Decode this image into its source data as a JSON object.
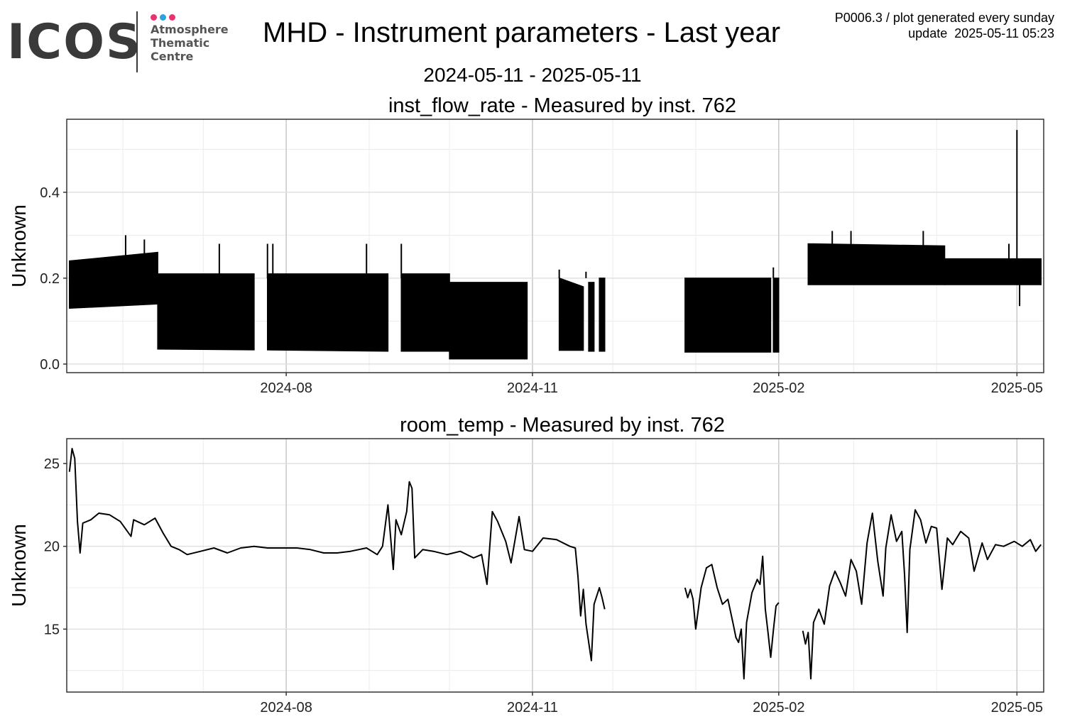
{
  "header": {
    "logo": {
      "word": "ICOS",
      "lines": [
        "Atmosphere",
        "Thematic",
        "Centre"
      ],
      "dot_colors": [
        "#e8336d",
        "#2ba3e0",
        "#e8336d"
      ]
    },
    "title": "MHD - Instrument parameters - Last year",
    "date_range": "2024-05-11 - 2025-05-11",
    "meta_line1": "P0006.3 / plot generated every sunday",
    "meta_line2": "update  2025-05-11 05:23"
  },
  "chart_data": [
    {
      "type": "line",
      "title": "inst_flow_rate - Measured by inst. 762",
      "ylabel": "Unknown",
      "xlim": [
        "2024-05-11",
        "2025-05-11"
      ],
      "ylim": [
        -0.02,
        0.57
      ],
      "yticks": [
        0.0,
        0.2,
        0.4
      ],
      "ytick_labels": [
        "0.0",
        "0.2",
        "0.4"
      ],
      "xticks": [
        "2024-08-01",
        "2024-11-01",
        "2025-02-01",
        "2025-05-01"
      ],
      "xtick_labels": [
        "2024-08",
        "2024-11",
        "2025-02",
        "2025-05"
      ],
      "grid": true,
      "series_color": "#000000",
      "envelope_segments": [
        {
          "start": "2024-05-12",
          "end": "2024-06-14",
          "low_start": 0.13,
          "low_end": 0.14,
          "high_start": 0.24,
          "high_end": 0.26
        },
        {
          "start": "2024-06-14",
          "end": "2024-07-20",
          "low_start": 0.035,
          "low_end": 0.033,
          "high_start": 0.21,
          "high_end": 0.21
        },
        {
          "start": "2024-07-25",
          "end": "2024-09-08",
          "low_start": 0.033,
          "low_end": 0.03,
          "high_start": 0.21,
          "high_end": 0.21
        },
        {
          "start": "2024-09-13",
          "end": "2024-10-01",
          "low_start": 0.03,
          "low_end": 0.03,
          "high_start": 0.21,
          "high_end": 0.21
        },
        {
          "start": "2024-10-01",
          "end": "2024-10-30",
          "low_start": 0.012,
          "low_end": 0.012,
          "high_start": 0.19,
          "high_end": 0.19
        },
        {
          "start": "2024-11-11",
          "end": "2024-11-20",
          "low_start": 0.032,
          "low_end": 0.032,
          "high_start": 0.2,
          "high_end": 0.18
        },
        {
          "start": "2024-11-22",
          "end": "2024-11-24",
          "low_start": 0.03,
          "low_end": 0.03,
          "high_start": 0.19,
          "high_end": 0.19
        },
        {
          "start": "2024-11-26",
          "end": "2024-11-28",
          "low_start": 0.03,
          "low_end": 0.03,
          "high_start": 0.2,
          "high_end": 0.2
        },
        {
          "start": "2024-12-28",
          "end": "2025-01-29",
          "low_start": 0.028,
          "low_end": 0.028,
          "high_start": 0.2,
          "high_end": 0.2
        },
        {
          "start": "2025-01-30",
          "end": "2025-02-01",
          "low_start": 0.028,
          "low_end": 0.028,
          "high_start": 0.2,
          "high_end": 0.2
        },
        {
          "start": "2025-02-12",
          "end": "2025-04-04",
          "low_start": 0.185,
          "low_end": 0.185,
          "high_start": 0.28,
          "high_end": 0.275
        },
        {
          "start": "2025-04-04",
          "end": "2025-05-10",
          "low_start": 0.185,
          "low_end": 0.185,
          "high_start": 0.245,
          "high_end": 0.245
        }
      ],
      "spikes": [
        {
          "x": "2024-06-02",
          "y": 0.3
        },
        {
          "x": "2024-06-09",
          "y": 0.29
        },
        {
          "x": "2024-07-07",
          "y": 0.28
        },
        {
          "x": "2024-07-25",
          "y": 0.28
        },
        {
          "x": "2024-07-27",
          "y": 0.28
        },
        {
          "x": "2024-08-31",
          "y": 0.28
        },
        {
          "x": "2024-09-13",
          "y": 0.28
        },
        {
          "x": "2024-11-11",
          "y": 0.22
        },
        {
          "x": "2024-11-21",
          "y": 0.215
        },
        {
          "x": "2025-01-30",
          "y": 0.225
        },
        {
          "x": "2025-02-21",
          "y": 0.31
        },
        {
          "x": "2025-02-28",
          "y": 0.31
        },
        {
          "x": "2025-03-27",
          "y": 0.31
        },
        {
          "x": "2025-04-28",
          "y": 0.28
        },
        {
          "x": "2025-05-01",
          "y": 0.545
        },
        {
          "x": "2025-05-02",
          "y": 0.135
        }
      ]
    },
    {
      "type": "line",
      "title": "room_temp - Measured by inst. 762",
      "ylabel": "Unknown",
      "xlim": [
        "2024-05-11",
        "2025-05-11"
      ],
      "ylim": [
        11.2,
        26.5
      ],
      "yticks": [
        15,
        20,
        25
      ],
      "ytick_labels": [
        "15",
        "20",
        "25"
      ],
      "xticks": [
        "2024-08-01",
        "2024-11-01",
        "2025-02-01",
        "2025-05-01"
      ],
      "xtick_labels": [
        "2024-08",
        "2024-11",
        "2025-02",
        "2025-05"
      ],
      "grid": true,
      "series_color": "#000000",
      "segments": [
        [
          [
            "2024-05-12",
            24.5
          ],
          [
            "2024-05-13",
            25.9
          ],
          [
            "2024-05-14",
            25.3
          ],
          [
            "2024-05-15",
            21.5
          ],
          [
            "2024-05-16",
            19.6
          ],
          [
            "2024-05-17",
            21.4
          ],
          [
            "2024-05-20",
            21.6
          ],
          [
            "2024-05-23",
            22.0
          ],
          [
            "2024-05-27",
            21.9
          ],
          [
            "2024-05-31",
            21.5
          ],
          [
            "2024-06-04",
            20.6
          ],
          [
            "2024-06-05",
            21.6
          ],
          [
            "2024-06-09",
            21.3
          ],
          [
            "2024-06-13",
            21.7
          ],
          [
            "2024-06-16",
            20.8
          ],
          [
            "2024-06-19",
            20.0
          ],
          [
            "2024-06-22",
            19.8
          ],
          [
            "2024-06-25",
            19.5
          ],
          [
            "2024-06-30",
            19.7
          ],
          [
            "2024-07-05",
            19.9
          ],
          [
            "2024-07-10",
            19.6
          ],
          [
            "2024-07-15",
            19.9
          ],
          [
            "2024-07-20",
            20.0
          ],
          [
            "2024-07-25",
            19.9
          ],
          [
            "2024-07-30",
            19.9
          ],
          [
            "2024-08-05",
            19.9
          ],
          [
            "2024-08-10",
            19.8
          ],
          [
            "2024-08-15",
            19.6
          ],
          [
            "2024-08-20",
            19.6
          ],
          [
            "2024-08-25",
            19.7
          ],
          [
            "2024-08-31",
            19.9
          ],
          [
            "2024-09-04",
            19.5
          ],
          [
            "2024-09-06",
            20.0
          ],
          [
            "2024-09-08",
            22.5
          ],
          [
            "2024-09-10",
            18.6
          ],
          [
            "2024-09-11",
            21.6
          ],
          [
            "2024-09-13",
            20.7
          ],
          [
            "2024-09-15",
            22.1
          ],
          [
            "2024-09-16",
            23.9
          ],
          [
            "2024-09-17",
            23.5
          ],
          [
            "2024-09-18",
            19.3
          ],
          [
            "2024-09-21",
            19.8
          ],
          [
            "2024-09-25",
            19.7
          ],
          [
            "2024-09-30",
            19.5
          ],
          [
            "2024-10-05",
            19.7
          ],
          [
            "2024-10-10",
            19.3
          ],
          [
            "2024-10-13",
            19.5
          ],
          [
            "2024-10-15",
            17.7
          ],
          [
            "2024-10-17",
            22.1
          ],
          [
            "2024-10-19",
            21.5
          ],
          [
            "2024-10-22",
            20.3
          ],
          [
            "2024-10-24",
            19.0
          ],
          [
            "2024-10-27",
            21.8
          ],
          [
            "2024-10-29",
            19.8
          ],
          [
            "2024-11-01",
            19.7
          ],
          [
            "2024-11-05",
            20.5
          ],
          [
            "2024-11-10",
            20.4
          ],
          [
            "2024-11-15",
            20.0
          ],
          [
            "2024-11-17",
            19.9
          ],
          [
            "2024-11-18",
            18.2
          ],
          [
            "2024-11-19",
            15.8
          ],
          [
            "2024-11-20",
            17.4
          ],
          [
            "2024-11-21",
            15.3
          ],
          [
            "2024-11-23",
            13.1
          ],
          [
            "2024-11-24",
            16.5
          ],
          [
            "2024-11-26",
            17.5
          ],
          [
            "2024-11-27",
            16.9
          ],
          [
            "2024-11-28",
            16.2
          ]
        ],
        [
          [
            "2024-12-28",
            17.5
          ],
          [
            "2024-12-29",
            16.9
          ],
          [
            "2024-12-30",
            17.4
          ],
          [
            "2024-12-31",
            16.8
          ],
          [
            "2025-01-01",
            15.0
          ],
          [
            "2025-01-03",
            17.5
          ],
          [
            "2025-01-05",
            18.7
          ],
          [
            "2025-01-07",
            18.9
          ],
          [
            "2025-01-09",
            17.5
          ],
          [
            "2025-01-11",
            16.5
          ],
          [
            "2025-01-13",
            16.8
          ],
          [
            "2025-01-15",
            15.3
          ],
          [
            "2025-01-16",
            14.5
          ],
          [
            "2025-01-17",
            14.2
          ],
          [
            "2025-01-18",
            15.0
          ],
          [
            "2025-01-19",
            12.0
          ],
          [
            "2025-01-20",
            15.4
          ],
          [
            "2025-01-22",
            17.2
          ],
          [
            "2025-01-24",
            18.0
          ],
          [
            "2025-01-25",
            17.7
          ],
          [
            "2025-01-26",
            19.4
          ],
          [
            "2025-01-27",
            16.2
          ],
          [
            "2025-01-28",
            14.8
          ],
          [
            "2025-01-29",
            13.3
          ],
          [
            "2025-01-30",
            14.9
          ],
          [
            "2025-01-31",
            16.4
          ],
          [
            "2025-02-01",
            16.6
          ]
        ],
        [
          [
            "2025-02-10",
            14.9
          ],
          [
            "2025-02-11",
            14.1
          ],
          [
            "2025-02-12",
            14.8
          ],
          [
            "2025-02-13",
            12.0
          ],
          [
            "2025-02-14",
            15.4
          ],
          [
            "2025-02-16",
            16.2
          ],
          [
            "2025-02-18",
            15.3
          ],
          [
            "2025-02-20",
            17.6
          ],
          [
            "2025-02-22",
            18.5
          ],
          [
            "2025-02-24",
            17.8
          ],
          [
            "2025-02-26",
            17.0
          ],
          [
            "2025-02-28",
            19.2
          ],
          [
            "2025-03-02",
            18.5
          ],
          [
            "2025-03-04",
            16.5
          ],
          [
            "2025-03-06",
            20.2
          ],
          [
            "2025-03-08",
            22.0
          ],
          [
            "2025-03-10",
            19.1
          ],
          [
            "2025-03-12",
            17.0
          ],
          [
            "2025-03-13",
            19.9
          ],
          [
            "2025-03-15",
            21.9
          ],
          [
            "2025-03-17",
            20.3
          ],
          [
            "2025-03-19",
            20.9
          ],
          [
            "2025-03-20",
            18.3
          ],
          [
            "2025-03-21",
            14.8
          ],
          [
            "2025-03-22",
            19.8
          ],
          [
            "2025-03-24",
            22.2
          ],
          [
            "2025-03-26",
            21.6
          ],
          [
            "2025-03-28",
            20.2
          ],
          [
            "2025-03-30",
            21.2
          ],
          [
            "2025-04-01",
            21.1
          ],
          [
            "2025-04-03",
            17.4
          ],
          [
            "2025-04-05",
            20.5
          ],
          [
            "2025-04-07",
            20.1
          ],
          [
            "2025-04-10",
            20.9
          ],
          [
            "2025-04-13",
            20.5
          ],
          [
            "2025-04-15",
            18.5
          ],
          [
            "2025-04-18",
            20.2
          ],
          [
            "2025-04-20",
            19.2
          ],
          [
            "2025-04-23",
            20.1
          ],
          [
            "2025-04-26",
            20.0
          ],
          [
            "2025-04-30",
            20.3
          ],
          [
            "2025-05-03",
            20.0
          ],
          [
            "2025-05-06",
            20.4
          ],
          [
            "2025-05-08",
            19.7
          ],
          [
            "2025-05-10",
            20.1
          ]
        ]
      ]
    }
  ]
}
